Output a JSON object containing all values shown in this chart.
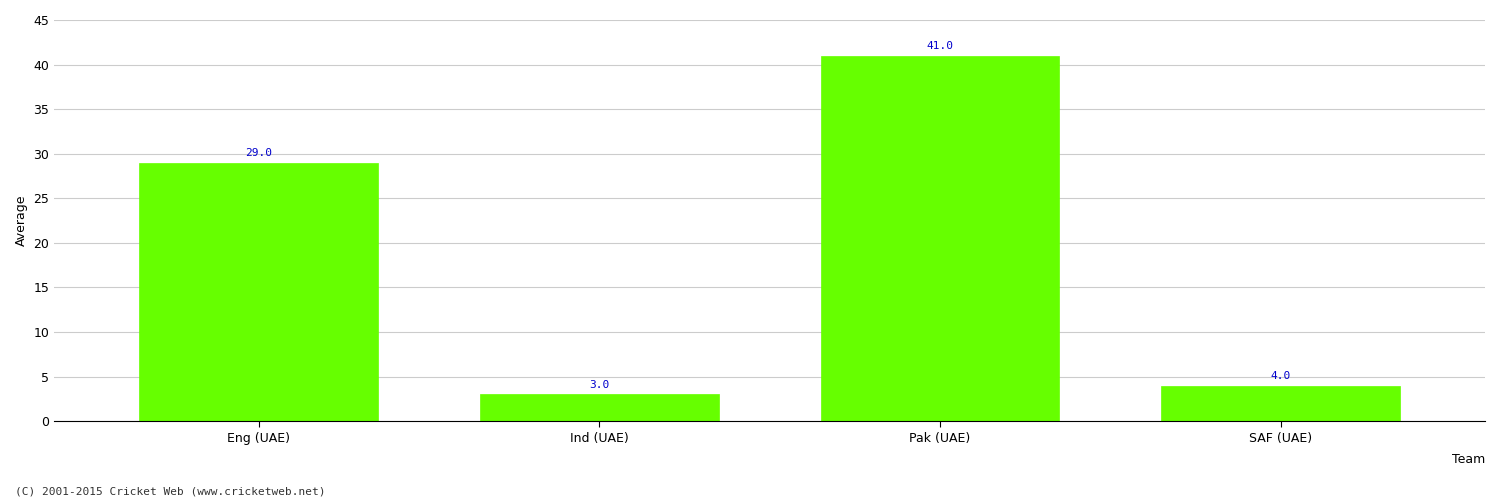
{
  "categories": [
    "Eng (UAE)",
    "Ind (UAE)",
    "Pak (UAE)",
    "SAF (UAE)"
  ],
  "values": [
    29.0,
    3.0,
    41.0,
    4.0
  ],
  "bar_color": "#66ff00",
  "bar_edge_color": "#66ff00",
  "label_color": "#0000cc",
  "xlabel": "Team",
  "ylabel": "Average",
  "ylim": [
    0,
    45
  ],
  "yticks": [
    0,
    5,
    10,
    15,
    20,
    25,
    30,
    35,
    40,
    45
  ],
  "background_color": "#ffffff",
  "grid_color": "#cccccc",
  "footer_text": "(C) 2001-2015 Cricket Web (www.cricketweb.net)",
  "label_fontsize": 8,
  "axis_fontsize": 9,
  "tick_fontsize": 9,
  "footer_fontsize": 8,
  "bar_width": 0.7
}
